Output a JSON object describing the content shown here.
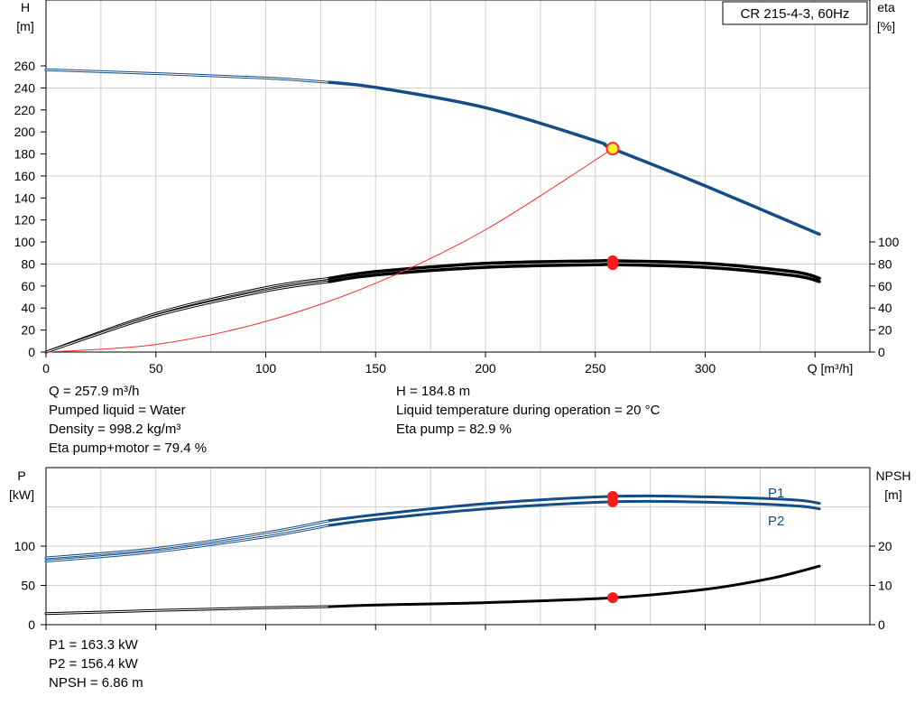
{
  "chart_data": [
    {
      "type": "line",
      "title_box": "CR 215-4-3, 60Hz",
      "ylabel_left": "H",
      "ylabel_left_unit": "[m]",
      "ylabel_right": "eta",
      "ylabel_right_unit": "[%]",
      "xlabel": "Q [m³/h]",
      "xlim": [
        0,
        370
      ],
      "ylim_left": [
        0,
        280
      ],
      "ylim_right": [
        0,
        100
      ],
      "x_ticks": [
        "0",
        "50",
        "100",
        "150",
        "200",
        "250",
        "300"
      ],
      "y_left_ticks": [
        "0",
        "20",
        "40",
        "60",
        "80",
        "100",
        "120",
        "140",
        "160",
        "180",
        "200",
        "220",
        "240",
        "260"
      ],
      "y_right_ticks": [
        "0",
        "20",
        "40",
        "60",
        "80",
        "100"
      ],
      "grid": true,
      "series": [
        {
          "key": "H",
          "thin_to": 129,
          "color": "#154d86",
          "x": [
            0,
            50,
            100,
            129,
            150,
            200,
            250,
            257.9,
            300,
            352
          ],
          "y": [
            256.5,
            253,
            249,
            245,
            240.5,
            222,
            192,
            184.8,
            151,
            107
          ]
        },
        {
          "key": "eta_pump",
          "thin_to": 129,
          "color": "#000000",
          "x": [
            0,
            50,
            100,
            129,
            150,
            200,
            250,
            257.9,
            300,
            340,
            352
          ],
          "y": [
            0,
            35,
            58.5,
            67,
            73,
            80.5,
            82.8,
            82.9,
            80.5,
            73,
            67
          ]
        },
        {
          "key": "eta_total",
          "thin_to": 129,
          "color": "#000000",
          "x": [
            0,
            50,
            100,
            129,
            150,
            200,
            250,
            257.9,
            300,
            340,
            352
          ],
          "y": [
            0,
            33,
            55.5,
            64,
            70,
            77,
            79.3,
            79.4,
            77,
            69.5,
            64
          ]
        },
        {
          "key": "system_curve",
          "color": "#ff2a2a",
          "x": [
            0,
            50,
            100,
            150,
            200,
            257.9
          ],
          "y": [
            0,
            6.9,
            27.8,
            62.5,
            111.1,
            184.8
          ]
        }
      ],
      "duty_point": {
        "x": 257.9,
        "H": 184.8,
        "eta_pump": 82.9,
        "eta_total": 79.4
      }
    },
    {
      "type": "line",
      "ylabel_left": "P",
      "ylabel_left_unit": "[kW]",
      "ylabel_right": "NPSH",
      "ylabel_right_unit": "[m]",
      "xlim": [
        0,
        370
      ],
      "ylim_left": [
        0,
        160
      ],
      "ylim_right": [
        0,
        32
      ],
      "y_left_ticks": [
        "0",
        "50",
        "100"
      ],
      "y_right_ticks": [
        "0",
        "10",
        "20"
      ],
      "grid": true,
      "series": [
        {
          "key": "P1",
          "name": "P1",
          "thin_to": 129,
          "color": "#154d86",
          "x": [
            0,
            50,
            100,
            129,
            150,
            200,
            257.9,
            300,
            340,
            352
          ],
          "y": [
            85,
            97,
            117,
            132.5,
            140,
            154,
            163.3,
            162.8,
            159,
            154.5
          ]
        },
        {
          "key": "P2",
          "name": "P2",
          "thin_to": 129,
          "color": "#154d86",
          "x": [
            0,
            50,
            100,
            129,
            150,
            200,
            257.9,
            300,
            340,
            352
          ],
          "y": [
            81,
            93,
            112,
            126.5,
            134,
            147.5,
            156.4,
            156,
            151.5,
            147.5
          ]
        },
        {
          "key": "NPSH",
          "thin_to": 129,
          "color": "#000000",
          "x": [
            0,
            50,
            100,
            129,
            150,
            200,
            257.9,
            300,
            330,
            352
          ],
          "y": [
            2.8,
            3.6,
            4.3,
            4.6,
            5.0,
            5.6,
            6.86,
            9.0,
            11.8,
            14.9
          ]
        }
      ],
      "duty_point": {
        "x": 257.9,
        "P1": 163.3,
        "P2": 156.4,
        "NPSH": 6.86
      }
    }
  ],
  "info_top_left": [
    "Q = 257.9 m³/h",
    "Pumped liquid = Water",
    "Density = 998.2 kg/m³",
    "Eta pump+motor = 79.4 %"
  ],
  "info_top_right": [
    "H = 184.8 m",
    "Liquid temperature during operation = 20 °C",
    "Eta pump = 82.9 %"
  ],
  "info_bottom": [
    "P1 = 163.3 kW",
    "P2 = 156.4 kW",
    "NPSH = 6.86 m"
  ]
}
